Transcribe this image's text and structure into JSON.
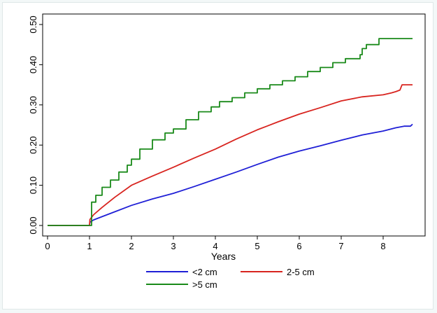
{
  "chart_data": {
    "type": "line",
    "xlabel": "Years",
    "ylabel": "",
    "xlim": [
      0,
      8.7
    ],
    "ylim": [
      0,
      0.5
    ],
    "x_ticks": [
      0,
      1,
      2,
      3,
      4,
      5,
      6,
      7,
      8
    ],
    "x_tick_labels": [
      "0",
      "1",
      "2",
      "3",
      "4",
      "5",
      "6",
      "7",
      "8"
    ],
    "y_ticks": [
      0,
      0.1,
      0.2,
      0.3,
      0.4,
      0.5
    ],
    "y_tick_labels": [
      "0.00",
      "0.10",
      "0.20",
      "0.30",
      "0.40",
      "0.50"
    ],
    "grid": false,
    "legend_position": "bottom",
    "series": [
      {
        "name": "<2 cm",
        "color": "#1f1fd6",
        "step": false,
        "x": [
          0,
          1.0,
          1.01,
          1.1,
          1.3,
          1.6,
          2.0,
          2.5,
          3.0,
          3.5,
          4.0,
          4.5,
          5.0,
          5.5,
          6.0,
          6.5,
          7.0,
          7.5,
          8.0,
          8.3,
          8.5,
          8.65,
          8.7
        ],
        "y": [
          0,
          0,
          0.008,
          0.014,
          0.022,
          0.034,
          0.05,
          0.066,
          0.08,
          0.097,
          0.115,
          0.133,
          0.152,
          0.17,
          0.185,
          0.198,
          0.212,
          0.225,
          0.235,
          0.243,
          0.247,
          0.247,
          0.252
        ]
      },
      {
        "name": "2-5 cm",
        "color": "#d8241f",
        "step": false,
        "x": [
          0,
          1.0,
          1.01,
          1.1,
          1.3,
          1.6,
          2.0,
          2.5,
          3.0,
          3.5,
          4.0,
          4.5,
          5.0,
          5.5,
          6.0,
          6.5,
          7.0,
          7.5,
          8.0,
          8.2,
          8.3,
          8.4,
          8.45,
          8.7
        ],
        "y": [
          0,
          0,
          0.015,
          0.027,
          0.045,
          0.07,
          0.1,
          0.123,
          0.145,
          0.168,
          0.19,
          0.215,
          0.238,
          0.258,
          0.277,
          0.293,
          0.31,
          0.32,
          0.325,
          0.33,
          0.333,
          0.337,
          0.35,
          0.35
        ]
      },
      {
        "name": ">5 cm",
        "color": "#1a8a1a",
        "step": true,
        "x": [
          0,
          1.0,
          1.05,
          1.15,
          1.3,
          1.5,
          1.7,
          1.9,
          2.0,
          2.2,
          2.5,
          2.8,
          3.0,
          3.3,
          3.6,
          3.9,
          4.1,
          4.4,
          4.7,
          5.0,
          5.3,
          5.6,
          5.9,
          6.2,
          6.5,
          6.8,
          7.1,
          7.35,
          7.45,
          7.5,
          7.55,
          7.6,
          7.85,
          7.9,
          8.7
        ],
        "y": [
          0,
          0,
          0.058,
          0.075,
          0.095,
          0.113,
          0.133,
          0.15,
          0.165,
          0.19,
          0.213,
          0.23,
          0.24,
          0.263,
          0.283,
          0.295,
          0.308,
          0.318,
          0.33,
          0.34,
          0.35,
          0.36,
          0.37,
          0.383,
          0.393,
          0.405,
          0.415,
          0.415,
          0.425,
          0.44,
          0.44,
          0.45,
          0.45,
          0.465,
          0.465
        ]
      }
    ]
  }
}
